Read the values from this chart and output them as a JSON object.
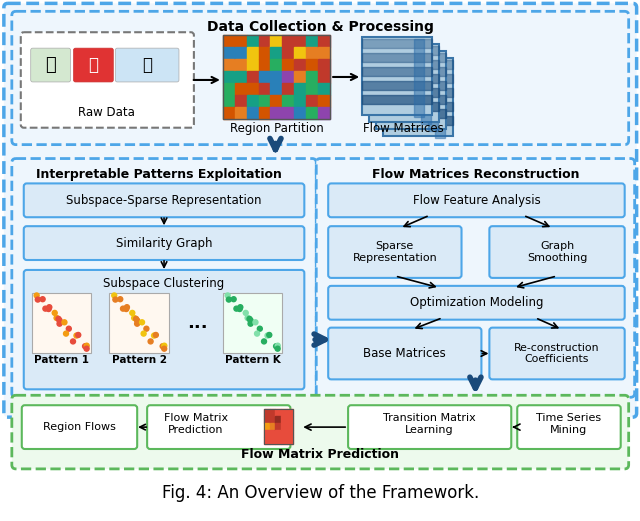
{
  "title": "Fig. 4: An Overview of the Framework.",
  "bg_color": "#ffffff",
  "blue_dash_color": "#4da6e8",
  "green_dash_color": "#5cb85c",
  "box_fill": "#daeaf7",
  "box_edge": "#4da6e8",
  "white_fill": "#ffffff",
  "section_titles": {
    "data_collection": "Data Collection & Processing",
    "interpretable": "Interpretable Patterns Exploitation",
    "flow_reconstruction": "Flow Matrices Reconstruction",
    "flow_prediction": "Flow Matrix Prediction"
  }
}
